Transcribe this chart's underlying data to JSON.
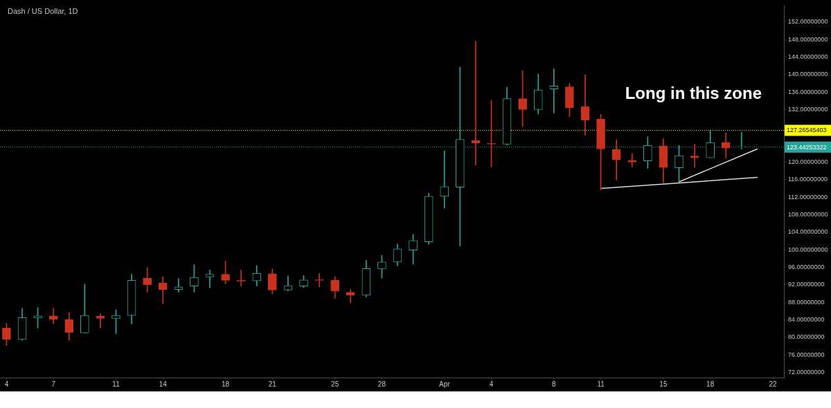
{
  "chart_data": {
    "type": "candlestick",
    "title": "Dash / US Dollar, 1D",
    "x": [
      "--03-04",
      "--03-05",
      "--03-06",
      "--03-07",
      "--03-08",
      "--03-09",
      "--03-10",
      "--03-11",
      "--03-12",
      "--03-13",
      "--03-14",
      "--03-15",
      "--03-16",
      "--03-17",
      "--03-18",
      "--03-19",
      "--03-20",
      "--03-21",
      "--03-22",
      "--03-23",
      "--03-24",
      "--03-25",
      "--03-26",
      "--03-27",
      "--03-28",
      "--03-29",
      "--03-30",
      "--03-31",
      "--04-01",
      "--04-02",
      "--04-03",
      "--04-04",
      "--04-05",
      "--04-06",
      "--04-07",
      "--04-08",
      "--04-09",
      "--04-10",
      "--04-11",
      "--04-12",
      "--04-13",
      "--04-14",
      "--04-15",
      "--04-16",
      "--04-17",
      "--04-18",
      "--04-19",
      "--04-20"
    ],
    "ohlc": [
      [
        82.1,
        83.2,
        78.1,
        79.5
      ],
      [
        79.5,
        86.6,
        79.3,
        84.5
      ],
      [
        84.4,
        86.8,
        82.1,
        84.9
      ],
      [
        84.9,
        86.6,
        83.1,
        84.1
      ],
      [
        84.1,
        85.7,
        79.3,
        81.1
      ],
      [
        81.0,
        92.1,
        81.0,
        85.0
      ],
      [
        84.8,
        85.4,
        82.1,
        84.3
      ],
      [
        84.3,
        86.3,
        80.8,
        85.0
      ],
      [
        85.0,
        94.4,
        83.0,
        93.0
      ],
      [
        93.5,
        95.9,
        90.3,
        92.0
      ],
      [
        92.4,
        93.8,
        87.7,
        90.9
      ],
      [
        90.9,
        93.4,
        90.3,
        91.5
      ],
      [
        91.7,
        96.6,
        90.3,
        93.7
      ],
      [
        93.8,
        95.4,
        91.3,
        94.4
      ],
      [
        94.4,
        97.4,
        92.2,
        93.0
      ],
      [
        93.0,
        95.4,
        91.7,
        92.8
      ],
      [
        92.9,
        96.4,
        91.7,
        94.6
      ],
      [
        94.5,
        95.6,
        89.9,
        90.8
      ],
      [
        90.8,
        94.0,
        90.6,
        91.8
      ],
      [
        91.7,
        94.1,
        91.3,
        93.1
      ],
      [
        93.1,
        94.6,
        91.5,
        93.0
      ],
      [
        93.0,
        93.9,
        88.9,
        90.6
      ],
      [
        90.3,
        90.9,
        87.9,
        89.6
      ],
      [
        89.6,
        97.6,
        89.2,
        95.7
      ],
      [
        95.6,
        98.7,
        93.5,
        97.2
      ],
      [
        97.2,
        101.3,
        96.3,
        100.2
      ],
      [
        99.9,
        103.5,
        96.7,
        102.1
      ],
      [
        101.8,
        112.9,
        101.2,
        112.2
      ],
      [
        112.2,
        122.6,
        109.5,
        114.4
      ],
      [
        114.3,
        141.7,
        100.8,
        125.2
      ],
      [
        124.9,
        147.6,
        119.3,
        124.4
      ],
      [
        124.3,
        134.1,
        118.9,
        124.1
      ],
      [
        124.1,
        137.1,
        123.9,
        134.5
      ],
      [
        134.5,
        140.9,
        128.1,
        132.0
      ],
      [
        132.0,
        140.1,
        131.0,
        136.5
      ],
      [
        136.7,
        141.3,
        131.2,
        137.4
      ],
      [
        137.2,
        138.0,
        130.4,
        132.4
      ],
      [
        132.7,
        140.0,
        126.1,
        129.6
      ],
      [
        129.8,
        130.9,
        113.6,
        123.0
      ],
      [
        122.9,
        125.1,
        115.9,
        120.5
      ],
      [
        120.4,
        122.0,
        118.9,
        120.0
      ],
      [
        120.3,
        125.8,
        118.6,
        123.8
      ],
      [
        123.7,
        125.3,
        115.3,
        118.8
      ],
      [
        118.7,
        123.8,
        115.5,
        121.5
      ],
      [
        121.4,
        124.1,
        118.8,
        121.0
      ],
      [
        121.0,
        127.3,
        121.0,
        124.5
      ],
      [
        124.5,
        126.6,
        120.9,
        123.2
      ],
      [
        123.4,
        126.8,
        123.0,
        123.4
      ]
    ],
    "colors": [
      "#c8321e",
      "#26a69a",
      "#26a69a",
      "#c8321e",
      "#c8321e",
      "#26a69a",
      "#c8321e",
      "#26a69a",
      "#26a69a",
      "#c8321e",
      "#c8321e",
      "#26a69a",
      "#26a69a",
      "#26a69a",
      "#c8321e",
      "#c8321e",
      "#26a69a",
      "#c8321e",
      "#26a69a",
      "#26a69a",
      "#c8321e",
      "#c8321e",
      "#c8321e",
      "#26a69a",
      "#26a69a",
      "#26a69a",
      "#26a69a",
      "#26a69a",
      "#26a69a",
      "#26a69a",
      "#c8321e",
      "#c8321e",
      "#26a69a",
      "#c8321e",
      "#26a69a",
      "#26a69a",
      "#c8321e",
      "#c8321e",
      "#c8321e",
      "#c8321e",
      "#c8321e",
      "#26a69a",
      "#c8321e",
      "#26a69a",
      "#c8321e",
      "#26a69a",
      "#c8321e",
      "#26a69a"
    ],
    "series": [
      {
        "type": "line",
        "x": [
          "--04-11",
          "--04-21"
        ],
        "values": [
          114.0,
          116.5
        ],
        "color": "#d9d9d9"
      },
      {
        "type": "line",
        "x": [
          "--04-16",
          "--04-21"
        ],
        "values": [
          115.5,
          123.0
        ],
        "color": "#d9d9d9"
      }
    ],
    "xlim": [
      "--03-03T14:00",
      "--04-22T17:00"
    ],
    "xticks": [
      {
        "value": "--03-04",
        "label": "4"
      },
      {
        "value": "--03-07",
        "label": "7"
      },
      {
        "value": "--03-11",
        "label": "11"
      },
      {
        "value": "--03-14",
        "label": "14"
      },
      {
        "value": "--03-18",
        "label": "18"
      },
      {
        "value": "--03-21",
        "label": "21"
      },
      {
        "value": "--03-25",
        "label": "25"
      },
      {
        "value": "--03-28",
        "label": "28"
      },
      {
        "value": "--04-01",
        "label": "Apr"
      },
      {
        "value": "--04-04",
        "label": "4"
      },
      {
        "value": "--04-08",
        "label": "8"
      },
      {
        "value": "--04-11",
        "label": "11"
      },
      {
        "value": "--04-15",
        "label": "15"
      },
      {
        "value": "--04-18",
        "label": "18"
      },
      {
        "value": "--04-22",
        "label": "22"
      }
    ],
    "ylim": [
      70.8,
      155.7
    ],
    "yticks": [
      {
        "value": 72,
        "label": "72.00000000"
      },
      {
        "value": 76,
        "label": "76.00000000"
      },
      {
        "value": 80,
        "label": "80.00000000"
      },
      {
        "value": 84,
        "label": "84.00000000"
      },
      {
        "value": 88,
        "label": "88.00000000"
      },
      {
        "value": 92,
        "label": "92.00000000"
      },
      {
        "value": 96,
        "label": "96.00000000"
      },
      {
        "value": 100,
        "label": "100.00000000"
      },
      {
        "value": 104,
        "label": "104.00000000"
      },
      {
        "value": 108,
        "label": "108.00000000"
      },
      {
        "value": 112,
        "label": "112.00000000"
      },
      {
        "value": 116,
        "label": "116.00000000"
      },
      {
        "value": 120,
        "label": "120.00000000"
      },
      {
        "value": 132,
        "label": "132.00000000"
      },
      {
        "value": 136,
        "label": "136.00000000"
      },
      {
        "value": 140,
        "label": "140.00000000"
      },
      {
        "value": 144,
        "label": "144.00000000"
      },
      {
        "value": 148,
        "label": "148.00000000"
      },
      {
        "value": 152,
        "label": "152.00000000"
      }
    ],
    "ref_lines": [
      {
        "axis": "y",
        "value": 127.26545403,
        "label": "127.26545403",
        "color": "#ffff00",
        "line_style": "dotted"
      },
      {
        "axis": "y",
        "value": 123.44253322,
        "label": "123.44253322",
        "color": "#26a69a",
        "line_style": "dotted"
      }
    ],
    "annotations": [
      "Long in this zone"
    ]
  }
}
